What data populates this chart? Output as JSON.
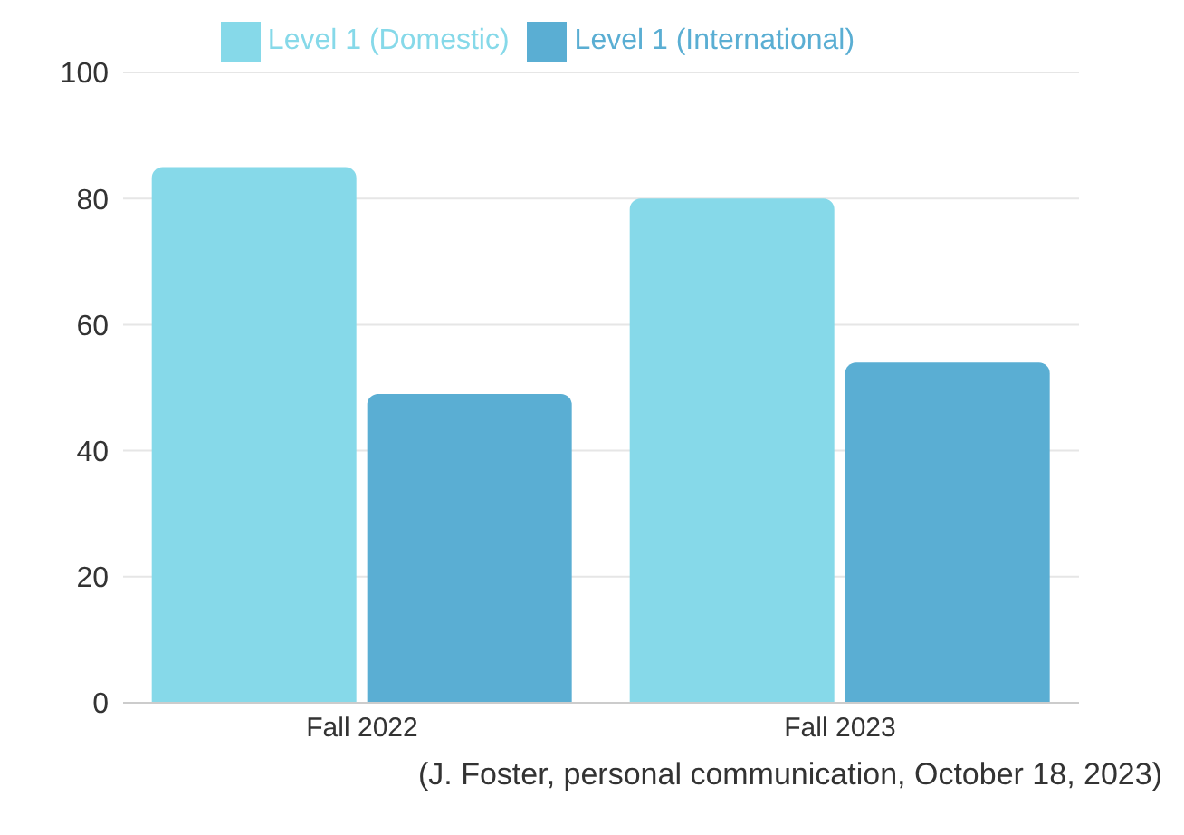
{
  "chart_data": {
    "type": "bar",
    "categories": [
      "Fall 2022",
      "Fall 2023"
    ],
    "series": [
      {
        "name": "Level 1 (Domestic)",
        "color": "#86d9e9",
        "values": [
          85,
          80
        ]
      },
      {
        "name": "Level 1 (International)",
        "color": "#5aaed3",
        "values": [
          49,
          54
        ]
      }
    ],
    "ylim": [
      0,
      100
    ],
    "yticks": [
      0,
      20,
      40,
      60,
      80,
      100
    ],
    "grid": "y",
    "legend": "top",
    "annotations": [
      "(J. Foster, personal communication, October 18, 2023)"
    ]
  }
}
